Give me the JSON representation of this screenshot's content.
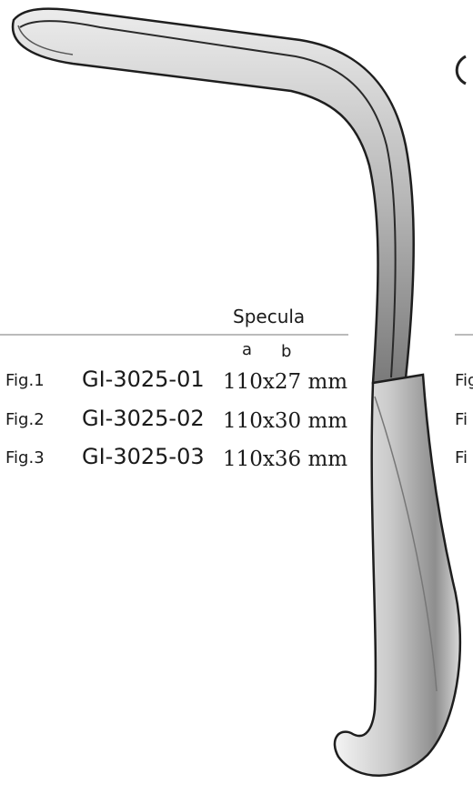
{
  "catalog": {
    "header": "Specula",
    "column_labels": [
      "a",
      "b"
    ],
    "rows": [
      [
        "Fig.1",
        "GI-3025-01",
        "110x27 mm"
      ],
      [
        "Fig.2",
        "GI-3025-02",
        "110x30 mm"
      ],
      [
        "Fig.3",
        "GI-3025-03",
        "110x36 mm"
      ]
    ],
    "neighbor_fragments": [
      "Fig",
      "Fi",
      "Fi"
    ]
  }
}
